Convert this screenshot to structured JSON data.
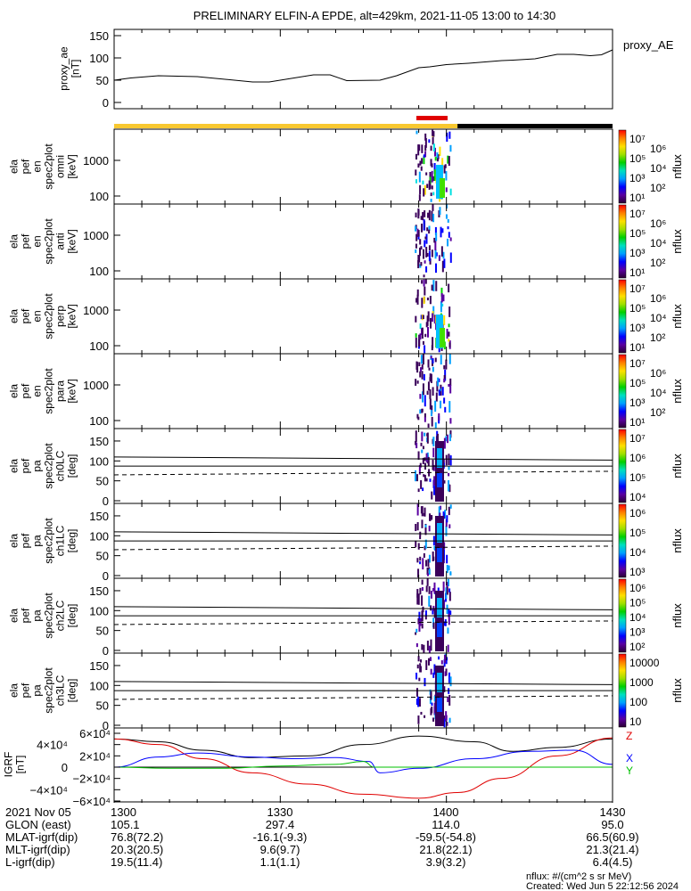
{
  "title": "PRELIMINARY ELFIN-A EPDE, alt=429km, 2021-11-05 13:00 to 14:30",
  "colors": {
    "bar_yellow": "#f8c830",
    "bar_red": "#e00000",
    "bar_black": "#000000",
    "igrf_x": "#0000ff",
    "igrf_y": "#00c000",
    "igrf_z": "#e00000",
    "igrf_tot": "#000000"
  },
  "chart_data": [
    {
      "type": "line",
      "name": "proxy_ae",
      "ylabel": [
        "proxy_ae",
        "[nT]"
      ],
      "legend": "proxy_AE",
      "ylim": [
        0,
        150
      ],
      "yticks": [
        "0",
        "50",
        "100",
        "150"
      ],
      "x": [
        0,
        3,
        8,
        15,
        25,
        28,
        36,
        39,
        42,
        48,
        51,
        55,
        57,
        60,
        64,
        70,
        72,
        76,
        80,
        83,
        86,
        88,
        90
      ],
      "values": [
        50,
        55,
        60,
        58,
        46,
        46,
        62,
        62,
        49,
        50,
        60,
        78,
        80,
        85,
        88,
        94,
        95,
        98,
        108,
        108,
        105,
        107,
        118
      ]
    },
    {
      "type": "heatmap",
      "name": "omni",
      "ylabel": [
        "ela",
        "pef",
        "en",
        "spec2plot",
        "omni",
        "[keV]"
      ],
      "yticks": [
        "1000",
        "100"
      ],
      "colorbar": {
        "label": "nflux",
        "ticks": [
          "10⁷",
          "10⁶",
          "10⁵",
          "10⁴",
          "10³",
          "10²",
          "10¹"
        ]
      }
    },
    {
      "type": "heatmap",
      "name": "anti",
      "ylabel": [
        "ela",
        "pef",
        "en",
        "spec2plot",
        "anti",
        "[keV]"
      ],
      "yticks": [
        "1000",
        "100"
      ],
      "colorbar": {
        "label": "nflux",
        "ticks": [
          "10⁷",
          "10⁶",
          "10⁵",
          "10⁴",
          "10³",
          "10²",
          "10¹"
        ]
      }
    },
    {
      "type": "heatmap",
      "name": "perp",
      "ylabel": [
        "ela",
        "pef",
        "en",
        "spec2plot",
        "perp",
        "[keV]"
      ],
      "yticks": [
        "1000",
        "100"
      ],
      "colorbar": {
        "label": "nflux",
        "ticks": [
          "10⁷",
          "10⁶",
          "10⁵",
          "10⁴",
          "10³",
          "10²",
          "10¹"
        ]
      }
    },
    {
      "type": "heatmap",
      "name": "para",
      "ylabel": [
        "ela",
        "pef",
        "en",
        "spec2plot",
        "para",
        "[keV]"
      ],
      "yticks": [
        "1000",
        "100"
      ],
      "colorbar": {
        "label": "nflux",
        "ticks": [
          "10⁷",
          "10⁶",
          "10⁵",
          "10⁴",
          "10³",
          "10²",
          "10¹"
        ]
      }
    },
    {
      "type": "heatmap",
      "name": "ch0LC",
      "ylabel": [
        "ela",
        "pef",
        "pa",
        "spec2plot",
        "ch0LC",
        "[deg]"
      ],
      "yticks": [
        "150",
        "100",
        "50",
        "0"
      ],
      "colorbar": {
        "label": "nflux",
        "ticks": [
          "10⁷",
          "10⁶",
          "10⁵",
          "10⁴"
        ]
      }
    },
    {
      "type": "heatmap",
      "name": "ch1LC",
      "ylabel": [
        "ela",
        "pef",
        "pa",
        "spec2plot",
        "ch1LC",
        "[deg]"
      ],
      "yticks": [
        "150",
        "100",
        "50",
        "0"
      ],
      "colorbar": {
        "label": "nflux",
        "ticks": [
          "10⁶",
          "10⁵",
          "10⁴",
          "10³"
        ]
      }
    },
    {
      "type": "heatmap",
      "name": "ch2LC",
      "ylabel": [
        "ela",
        "pef",
        "pa",
        "spec2plot",
        "ch2LC",
        "[deg]"
      ],
      "yticks": [
        "150",
        "100",
        "50",
        "0"
      ],
      "colorbar": {
        "label": "nflux",
        "ticks": [
          "10⁶",
          "10⁵",
          "10⁴",
          "10³",
          "10²"
        ]
      }
    },
    {
      "type": "heatmap",
      "name": "ch3LC",
      "ylabel": [
        "ela",
        "pef",
        "pa",
        "spec2plot",
        "ch3LC",
        "[deg]"
      ],
      "yticks": [
        "150",
        "100",
        "50",
        "0"
      ],
      "colorbar": {
        "label": "nflux",
        "ticks": [
          "10000",
          "1000",
          "100",
          "10"
        ]
      }
    },
    {
      "type": "line",
      "name": "igrf",
      "ylabel": [
        "IGRF",
        "[nT]"
      ],
      "ylim": [
        -65000,
        65000
      ],
      "yticks": [
        "6×10⁴",
        "4×10⁴",
        "2×10⁴",
        "0",
        "−2×10⁴",
        "−4×10⁴",
        "−6×10⁴"
      ],
      "series": [
        {
          "name": "tot",
          "x": [
            0,
            8,
            16,
            25,
            35,
            45,
            55,
            65,
            72,
            80,
            90
          ],
          "values": [
            50000,
            45000,
            30000,
            17000,
            20000,
            40000,
            55000,
            45000,
            28000,
            35000,
            50000
          ]
        },
        {
          "name": "z",
          "x": [
            0,
            8,
            16,
            25,
            35,
            45,
            55,
            62,
            70,
            80,
            90
          ],
          "values": [
            50000,
            40000,
            15000,
            -10000,
            -30000,
            -48000,
            -55000,
            -45000,
            -20000,
            20000,
            52000
          ]
        },
        {
          "name": "x",
          "x": [
            0,
            8,
            15,
            25,
            32,
            40,
            46,
            48,
            55,
            65,
            75,
            83,
            90
          ],
          "values": [
            0,
            18000,
            25000,
            18000,
            15000,
            17000,
            10000,
            -10000,
            -2000,
            15000,
            28000,
            30000,
            5000
          ]
        },
        {
          "name": "y",
          "x": [
            0,
            10,
            20,
            30,
            40,
            45,
            47,
            55,
            70,
            90
          ],
          "values": [
            0,
            -2000,
            -2000,
            2000,
            5000,
            10000,
            0,
            0,
            0,
            0
          ]
        }
      ]
    }
  ],
  "time_axis": {
    "rows": [
      {
        "label": "2021 Nov 05",
        "values": [
          "1300",
          "1330",
          "1400",
          "1430"
        ]
      },
      {
        "label": "GLON (east)",
        "values": [
          "105.1",
          "297.4",
          "114.0",
          "95.0"
        ]
      },
      {
        "label": "MLAT-igrf(dip)",
        "values": [
          "76.8(72.2)",
          "-16.1(-9.3)",
          "-59.5(-54.8)",
          "66.5(60.9)"
        ]
      },
      {
        "label": "MLT-igrf(dip)",
        "values": [
          "20.3(20.5)",
          "9.6(9.7)",
          "21.8(22.1)",
          "21.3(21.4)"
        ]
      },
      {
        "label": "L-igrf(dip)",
        "values": [
          "19.5(11.4)",
          "1.1(1.1)",
          "3.9(3.2)",
          "6.4(4.5)"
        ]
      }
    ]
  },
  "footer": {
    "units": "nflux: #/(cm^2 s sr MeV)",
    "created": "Created: Wed Jun  5 22:12:56 2024"
  },
  "igrf_legend": {
    "z": "Z",
    "x": "X",
    "y": "Y"
  }
}
